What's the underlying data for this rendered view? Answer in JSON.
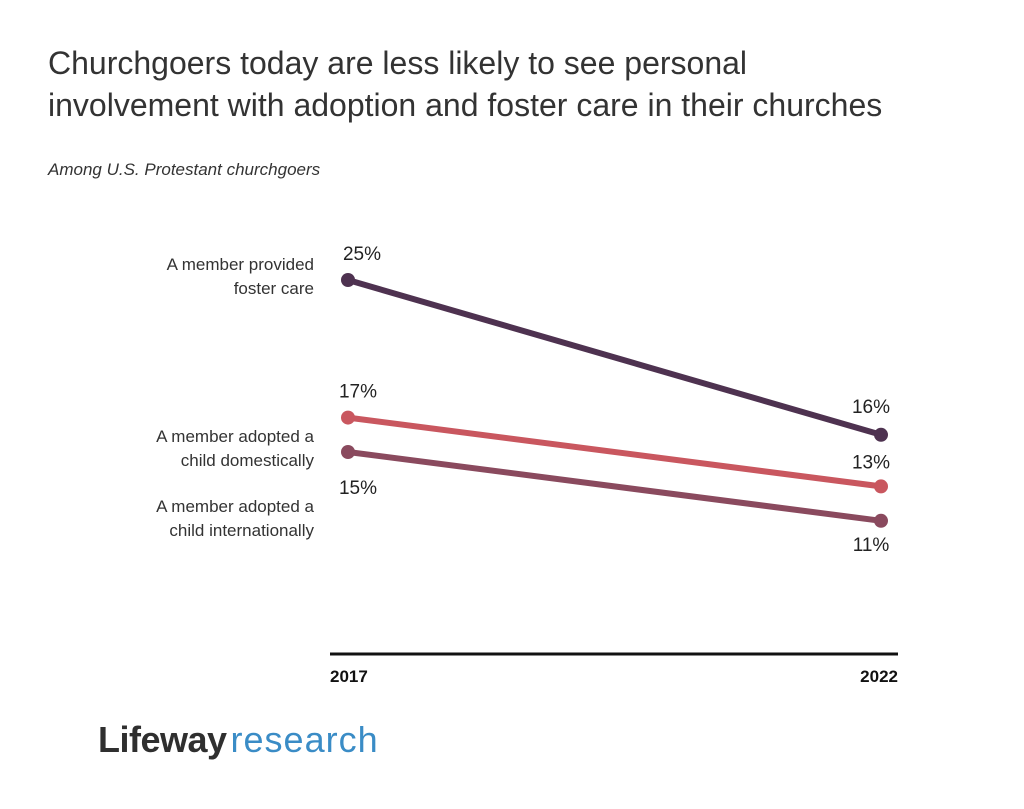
{
  "title_line1": "Churchgoers today are less likely to see personal",
  "title_line2": "involvement with adoption and foster care in their churches",
  "subtitle": "Among U.S. Protestant churchgoers",
  "logo": {
    "brand": "Lifeway",
    "research": "research"
  },
  "chart_data": {
    "type": "line",
    "x": [
      "2017",
      "2022"
    ],
    "ylim": [
      0,
      30
    ],
    "grid": false,
    "series": [
      {
        "name": "A member provided foster care",
        "label_lines": [
          "A member provided",
          "foster care"
        ],
        "values": [
          25,
          16
        ],
        "value_labels": [
          "25%",
          "16%"
        ],
        "color": "#4e3250"
      },
      {
        "name": "A member adopted a child domestically",
        "label_lines": [
          "A member adopted a",
          "child domestically"
        ],
        "values": [
          17,
          13
        ],
        "value_labels": [
          "17%",
          "13%"
        ],
        "color": "#c9575f"
      },
      {
        "name": "A member adopted a child internationally",
        "label_lines": [
          "A member adopted a",
          "child internationally"
        ],
        "values": [
          15,
          11
        ],
        "value_labels": [
          "15%",
          "11%"
        ],
        "color": "#8a4a5e"
      }
    ]
  }
}
